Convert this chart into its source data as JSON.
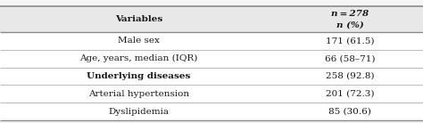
{
  "col1_header": "Variables",
  "col2_header_line1": "n = 278",
  "col2_header_line2": "n (%)",
  "rows": [
    {
      "label": "Male sex",
      "value": "171 (61.5)",
      "bold": false
    },
    {
      "label": "Age, years, median (IQR)",
      "value": "66 (58–71)",
      "bold": false
    },
    {
      "label": "Underlying diseases",
      "value": "258 (92.8)",
      "bold": true
    },
    {
      "label": "Arterial hypertension",
      "value": "201 (72.3)",
      "bold": false
    },
    {
      "label": "Dyslipidemia",
      "value": "85 (30.6)",
      "bold": false
    }
  ],
  "bg_color": "#f5f5f5",
  "header_bg": "#e8e8e8",
  "row_bg": "#ffffff",
  "border_color_heavy": "#8a8a8a",
  "border_color_light": "#b0b0b0",
  "text_color": "#1a1a1a",
  "font_size": 7.5,
  "header_font_size": 7.5,
  "col_split": 0.655,
  "fig_width": 4.74,
  "fig_height": 1.38,
  "dpi": 100
}
